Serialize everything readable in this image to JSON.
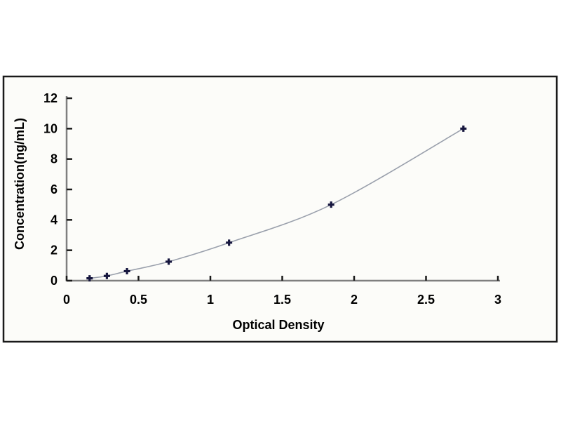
{
  "figure": {
    "description": "ELISA standard curve plot"
  },
  "chart_data": {
    "type": "line",
    "title": "",
    "xlabel": "Optical Density",
    "ylabel": "Concentration(ng/mL)",
    "xlim": [
      0,
      3
    ],
    "ylim": [
      0,
      12
    ],
    "x_ticks": [
      0,
      0.5,
      1,
      1.5,
      2,
      2.5,
      3
    ],
    "x_tick_labels": [
      "0",
      "0.5",
      "1",
      "1.5",
      "2",
      "2.5",
      "3"
    ],
    "y_ticks": [
      0,
      2,
      4,
      6,
      8,
      10,
      12
    ],
    "y_tick_labels": [
      "0",
      "2",
      "4",
      "6",
      "8",
      "10",
      "12"
    ],
    "grid": false,
    "legend": "none",
    "series": [
      {
        "name": "standard-curve",
        "x": [
          0.16,
          0.28,
          0.42,
          0.71,
          1.13,
          1.84,
          2.76
        ],
        "y": [
          0.156,
          0.312,
          0.625,
          1.25,
          2.5,
          5,
          10
        ],
        "marker": "plus",
        "marker_color": "#16163e",
        "line_color": "#9aa0ac"
      }
    ],
    "colors": {
      "axis": "#7f7f7f",
      "tick": "#1a1a1a",
      "text": "#000000",
      "frame_border": "#1a1a1a",
      "frame_background": "#fcfcf9",
      "page_background": "#ffffff"
    }
  }
}
